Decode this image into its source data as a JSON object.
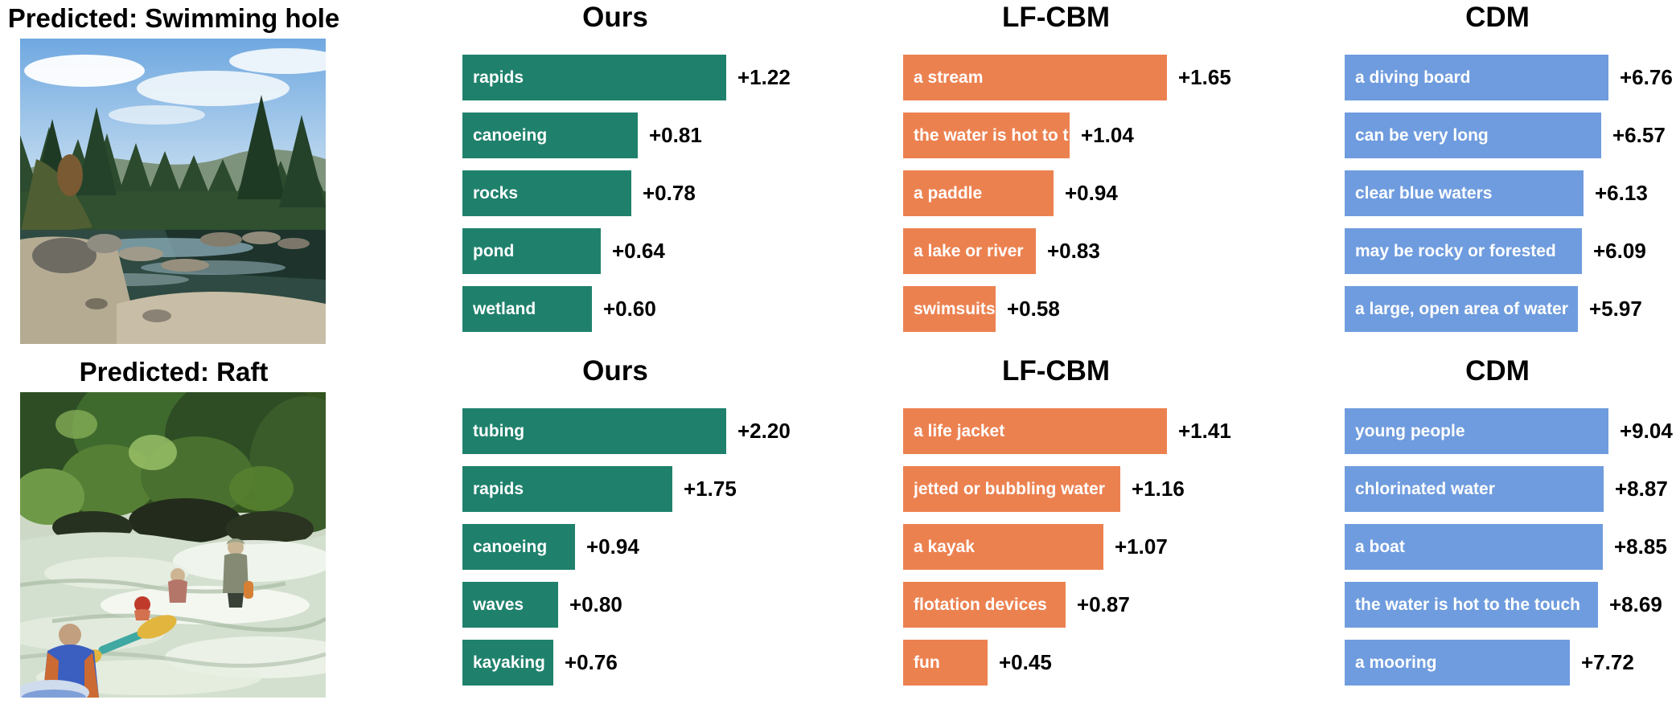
{
  "colors": {
    "ours": "#1f816c",
    "lfcbm": "#ec8150",
    "cdm": "#6f9cde",
    "value_text": "#000000",
    "bar_text": "#ffffff",
    "background": "#ffffff"
  },
  "layout_hint": {
    "orientation": "horizontal",
    "grid": false,
    "legend": false
  },
  "rows": [
    {
      "predicted_label": "Predicted: Swimming hole",
      "photo_subject": "river swimming hole surrounded by pine forest and rocks",
      "charts": [
        {
          "method": "Ours",
          "color": "#1f816c",
          "bars": [
            {
              "label": "rapids",
              "value": 1.22,
              "display": "+1.22"
            },
            {
              "label": "canoeing",
              "value": 0.81,
              "display": "+0.81"
            },
            {
              "label": "rocks",
              "value": 0.78,
              "display": "+0.78"
            },
            {
              "label": "pond",
              "value": 0.64,
              "display": "+0.64"
            },
            {
              "label": "wetland",
              "value": 0.6,
              "display": "+0.60"
            }
          ]
        },
        {
          "method": "LF-CBM",
          "color": "#ec8150",
          "bars": [
            {
              "label": "a stream",
              "value": 1.65,
              "display": "+1.65"
            },
            {
              "label": "the water is hot to the touch",
              "value": 1.04,
              "display": "+1.04"
            },
            {
              "label": "a paddle",
              "value": 0.94,
              "display": "+0.94"
            },
            {
              "label": "a lake or river",
              "value": 0.83,
              "display": "+0.83"
            },
            {
              "label": "swimsuits",
              "value": 0.58,
              "display": "+0.58"
            }
          ]
        },
        {
          "method": "CDM",
          "color": "#6f9cde",
          "bars": [
            {
              "label": "a diving board",
              "value": 6.76,
              "display": "+6.76"
            },
            {
              "label": "can be very long",
              "value": 6.57,
              "display": "+6.57"
            },
            {
              "label": "clear blue waters",
              "value": 6.13,
              "display": "+6.13"
            },
            {
              "label": "may be rocky or forested",
              "value": 6.09,
              "display": "+6.09"
            },
            {
              "label": "a large, open area of water",
              "value": 5.97,
              "display": "+5.97"
            }
          ]
        }
      ]
    },
    {
      "predicted_label": "Predicted: Raft",
      "photo_subject": "people rafting and kayaking in whitewater rapids below green foliage",
      "charts": [
        {
          "method": "Ours",
          "color": "#1f816c",
          "bars": [
            {
              "label": "tubing",
              "value": 2.2,
              "display": "+2.20"
            },
            {
              "label": "rapids",
              "value": 1.75,
              "display": "+1.75"
            },
            {
              "label": "canoeing",
              "value": 0.94,
              "display": "+0.94"
            },
            {
              "label": "waves",
              "value": 0.8,
              "display": "+0.80"
            },
            {
              "label": "kayaking",
              "value": 0.76,
              "display": "+0.76"
            }
          ]
        },
        {
          "method": "LF-CBM",
          "color": "#ec8150",
          "bars": [
            {
              "label": "a life jacket",
              "value": 1.41,
              "display": "+1.41"
            },
            {
              "label": "jetted or bubbling water",
              "value": 1.16,
              "display": "+1.16"
            },
            {
              "label": "a kayak",
              "value": 1.07,
              "display": "+1.07"
            },
            {
              "label": "flotation devices",
              "value": 0.87,
              "display": "+0.87"
            },
            {
              "label": "fun",
              "value": 0.45,
              "display": "+0.45"
            }
          ]
        },
        {
          "method": "CDM",
          "color": "#6f9cde",
          "bars": [
            {
              "label": "young people",
              "value": 9.04,
              "display": "+9.04"
            },
            {
              "label": "chlorinated water",
              "value": 8.87,
              "display": "+8.87"
            },
            {
              "label": "a boat",
              "value": 8.85,
              "display": "+8.85"
            },
            {
              "label": "the water is hot to the touch",
              "value": 8.69,
              "display": "+8.69"
            },
            {
              "label": "a mooring",
              "value": 7.72,
              "display": "+7.72"
            }
          ]
        }
      ]
    }
  ],
  "chart_data": [
    {
      "type": "bar",
      "orientation": "horizontal",
      "title": "Ours",
      "group": "Predicted: Swimming hole",
      "categories": [
        "rapids",
        "canoeing",
        "rocks",
        "pond",
        "wetland"
      ],
      "values": [
        1.22,
        0.81,
        0.78,
        0.64,
        0.6
      ],
      "value_labels": [
        "+1.22",
        "+0.81",
        "+0.78",
        "+0.64",
        "+0.60"
      ],
      "bar_color": "#1f816c",
      "xlim": [
        0,
        1.22
      ]
    },
    {
      "type": "bar",
      "orientation": "horizontal",
      "title": "LF-CBM",
      "group": "Predicted: Swimming hole",
      "categories": [
        "a stream",
        "the water is hot to the touch",
        "a paddle",
        "a lake or river",
        "swimsuits"
      ],
      "values": [
        1.65,
        1.04,
        0.94,
        0.83,
        0.58
      ],
      "value_labels": [
        "+1.65",
        "+1.04",
        "+0.94",
        "+0.83",
        "+0.58"
      ],
      "bar_color": "#ec8150",
      "xlim": [
        0,
        1.65
      ]
    },
    {
      "type": "bar",
      "orientation": "horizontal",
      "title": "CDM",
      "group": "Predicted: Swimming hole",
      "categories": [
        "a diving board",
        "can be very long",
        "clear blue waters",
        "may be rocky or forested",
        "a large, open area of water"
      ],
      "values": [
        6.76,
        6.57,
        6.13,
        6.09,
        5.97
      ],
      "value_labels": [
        "+6.76",
        "+6.57",
        "+6.13",
        "+6.09",
        "+5.97"
      ],
      "bar_color": "#6f9cde",
      "xlim": [
        0,
        6.76
      ]
    },
    {
      "type": "bar",
      "orientation": "horizontal",
      "title": "Ours",
      "group": "Predicted: Raft",
      "categories": [
        "tubing",
        "rapids",
        "canoeing",
        "waves",
        "kayaking"
      ],
      "values": [
        2.2,
        1.75,
        0.94,
        0.8,
        0.76
      ],
      "value_labels": [
        "+2.20",
        "+1.75",
        "+0.94",
        "+0.80",
        "+0.76"
      ],
      "bar_color": "#1f816c",
      "xlim": [
        0,
        2.2
      ]
    },
    {
      "type": "bar",
      "orientation": "horizontal",
      "title": "LF-CBM",
      "group": "Predicted: Raft",
      "categories": [
        "a life jacket",
        "jetted or bubbling water",
        "a kayak",
        "flotation devices",
        "fun"
      ],
      "values": [
        1.41,
        1.16,
        1.07,
        0.87,
        0.45
      ],
      "value_labels": [
        "+1.41",
        "+1.16",
        "+1.07",
        "+0.87",
        "+0.45"
      ],
      "bar_color": "#ec8150",
      "xlim": [
        0,
        1.41
      ]
    },
    {
      "type": "bar",
      "orientation": "horizontal",
      "title": "CDM",
      "group": "Predicted: Raft",
      "categories": [
        "young people",
        "chlorinated water",
        "a boat",
        "the water is hot to the touch",
        "a mooring"
      ],
      "values": [
        9.04,
        8.87,
        8.85,
        8.69,
        7.72
      ],
      "value_labels": [
        "+9.04",
        "+8.87",
        "+8.85",
        "+8.69",
        "+7.72"
      ],
      "bar_color": "#6f9cde",
      "xlim": [
        0,
        9.04
      ]
    }
  ]
}
